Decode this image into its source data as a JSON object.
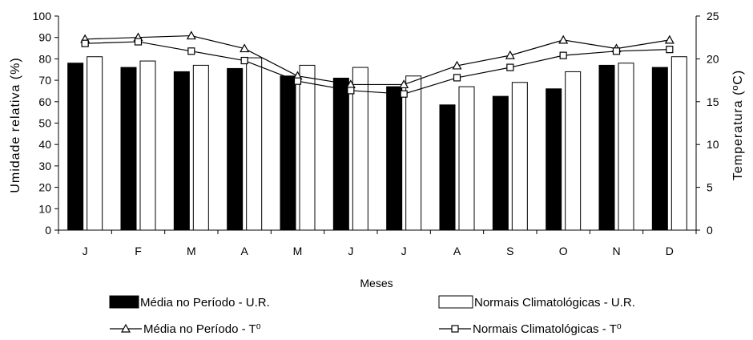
{
  "chart_data": {
    "type": "bar",
    "xlabel": "Meses",
    "ylabel": "Umidade relativa (%)",
    "y2label": "Temperatura (ºC)",
    "categories": [
      "J",
      "F",
      "M",
      "A",
      "M",
      "J",
      "J",
      "A",
      "S",
      "O",
      "N",
      "D"
    ],
    "ylim": [
      0,
      100
    ],
    "y2lim": [
      0,
      25
    ],
    "yticks": [
      "0",
      "10",
      "20",
      "30",
      "40",
      "50",
      "60",
      "70",
      "80",
      "90",
      "100"
    ],
    "y2ticks": [
      "0",
      "5",
      "10",
      "15",
      "20",
      "25"
    ],
    "grid": false,
    "legend_position": "bottom",
    "bar_series": [
      {
        "name": "Média no Período - U.R.",
        "color": "#000000",
        "fill": "#000000",
        "values": [
          78,
          76,
          74,
          75.5,
          72,
          71,
          67,
          58.5,
          62.5,
          66,
          77,
          76
        ]
      },
      {
        "name": "Normais Climatológicas - U.R.",
        "color": "#000000",
        "fill": "#ffffff",
        "values": [
          81,
          79,
          77,
          80.5,
          77,
          76,
          72,
          67,
          69,
          74,
          78,
          81
        ]
      }
    ],
    "line_series": [
      {
        "name": "Média no Período - T⁰",
        "marker": "triangle",
        "axis": "right",
        "values": [
          22.3,
          22.5,
          22.7,
          21.2,
          18.0,
          17.0,
          17.0,
          19.2,
          20.4,
          22.2,
          21.2,
          22.2
        ]
      },
      {
        "name": "Normais Climatológicas - T⁰",
        "marker": "square",
        "axis": "right",
        "values": [
          21.8,
          22.0,
          20.9,
          19.8,
          17.4,
          16.3,
          15.9,
          17.8,
          19.0,
          20.4,
          20.9,
          21.1
        ]
      }
    ]
  }
}
